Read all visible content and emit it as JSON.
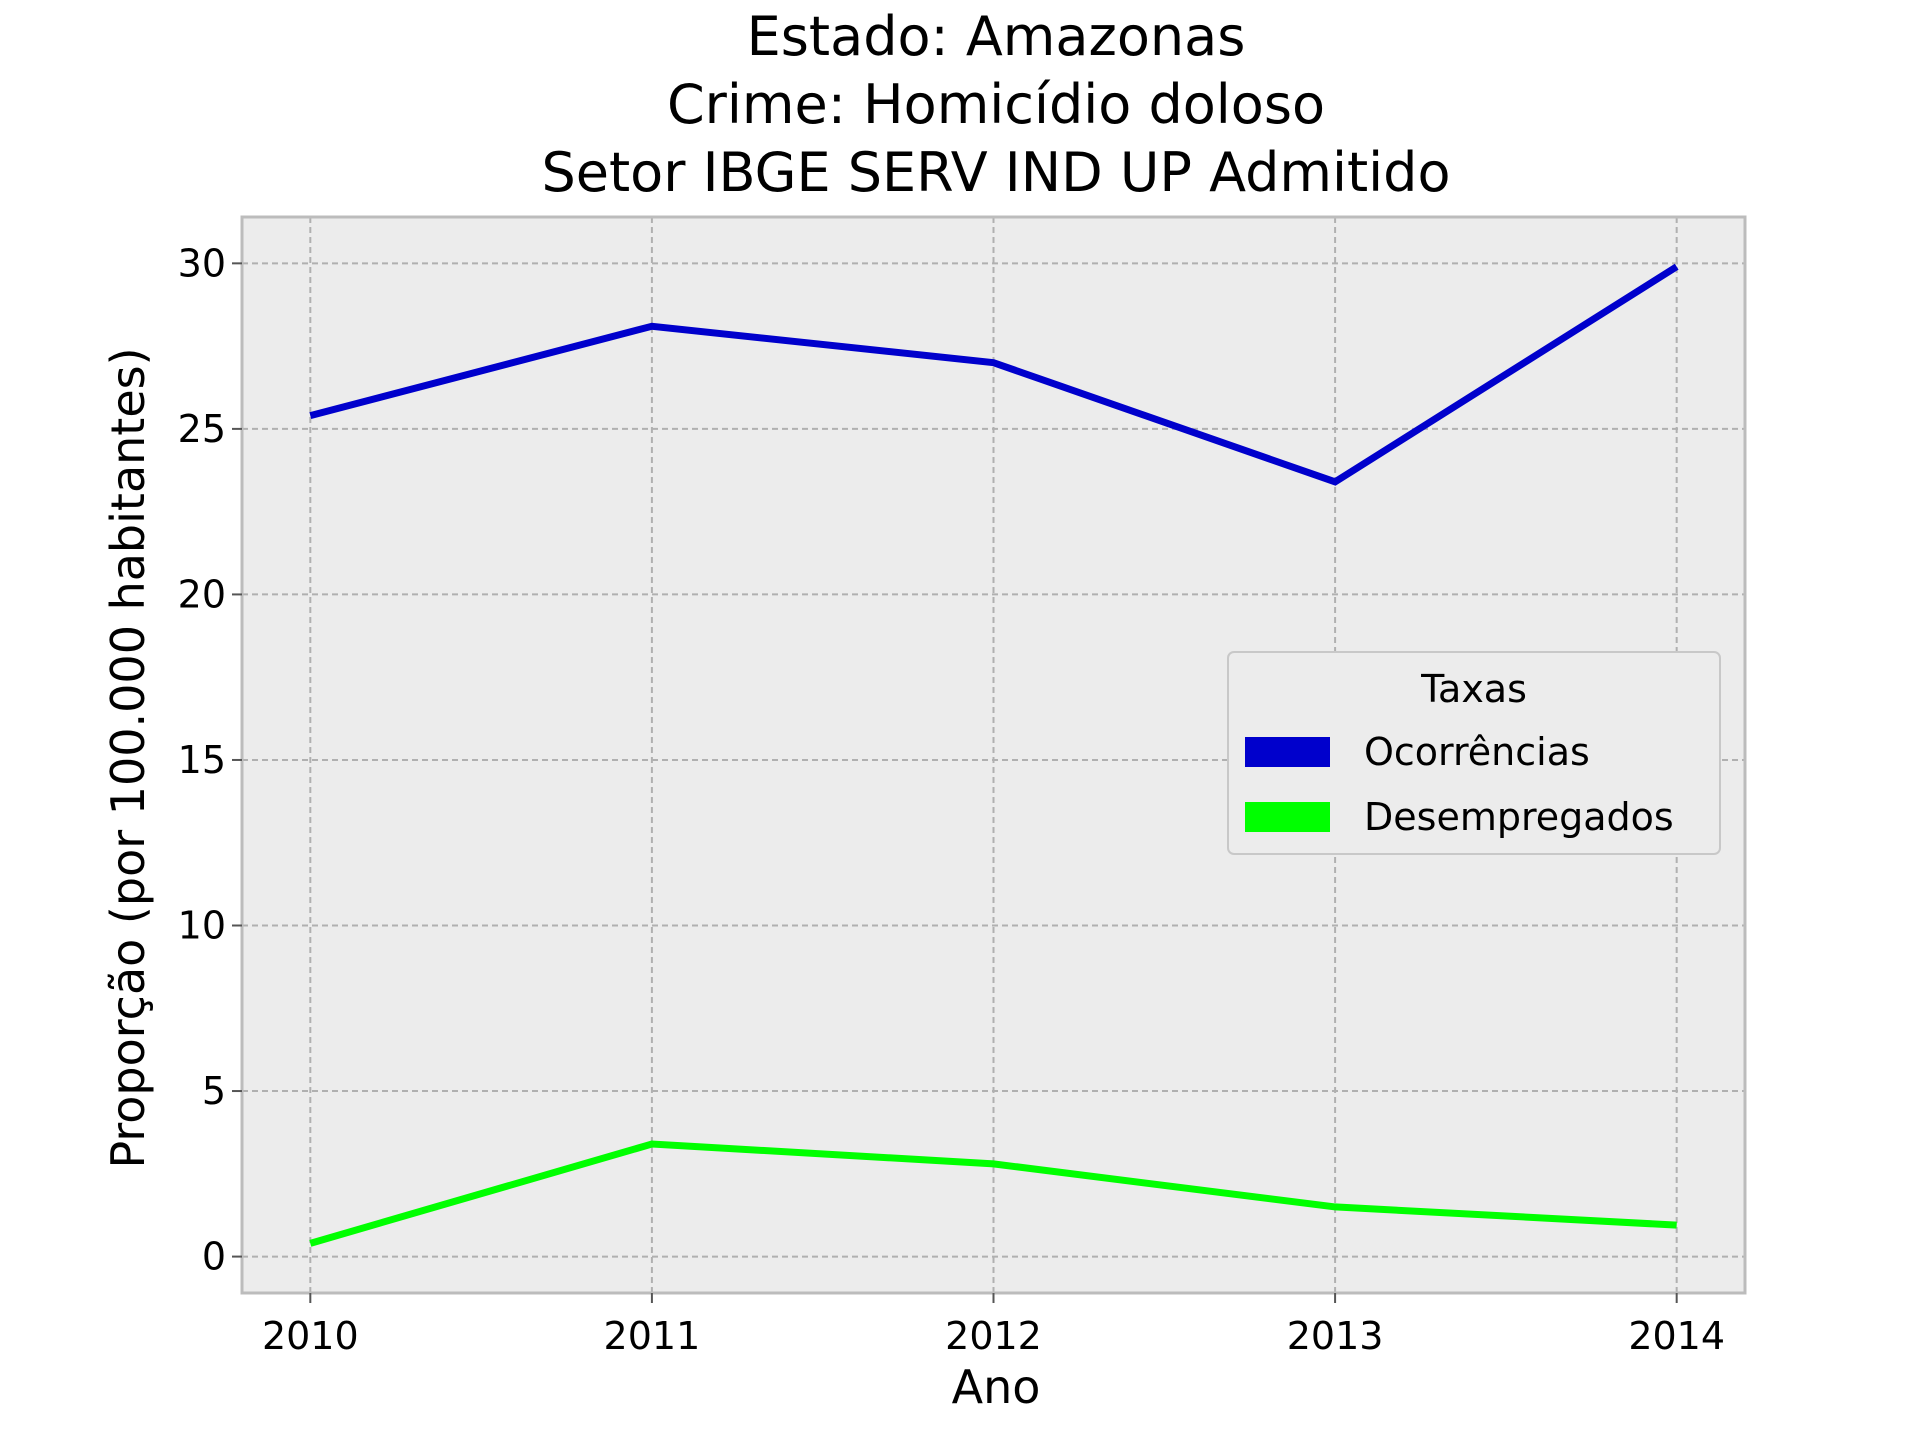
{
  "chart_data": {
    "type": "line",
    "title_lines": [
      "Estado: Amazonas",
      "Crime: Homicídio doloso",
      "Setor IBGE  SERV IND UP   Admitido"
    ],
    "xlabel": "Ano",
    "ylabel": "Proporção (por 100.000 habitantes)",
    "x": [
      2010,
      2011,
      2012,
      2013,
      2014
    ],
    "x_tick_labels": [
      "2010",
      "2011",
      "2012",
      "2013",
      "2014"
    ],
    "y_ticks": [
      0,
      5,
      10,
      15,
      20,
      25,
      30
    ],
    "y_tick_labels": [
      "0",
      "5",
      "10",
      "15",
      "20",
      "25",
      "30"
    ],
    "xlim": [
      2009.8,
      2014.2
    ],
    "ylim": [
      -1.1,
      31.4
    ],
    "grid": true,
    "legend": {
      "title": "Taxas",
      "placement": "center-right"
    },
    "series": [
      {
        "name": "Ocorrências",
        "color": "#0000cc",
        "values": [
          25.4,
          28.1,
          27.0,
          23.4,
          29.9
        ]
      },
      {
        "name": "Desempregados",
        "color": "#00ff00",
        "values": [
          0.4,
          3.4,
          2.8,
          1.5,
          0.95
        ]
      }
    ],
    "colors": {
      "plot_background": "#ececec",
      "grid": "#b0b0b0",
      "frame": "#bcbcbc"
    }
  }
}
